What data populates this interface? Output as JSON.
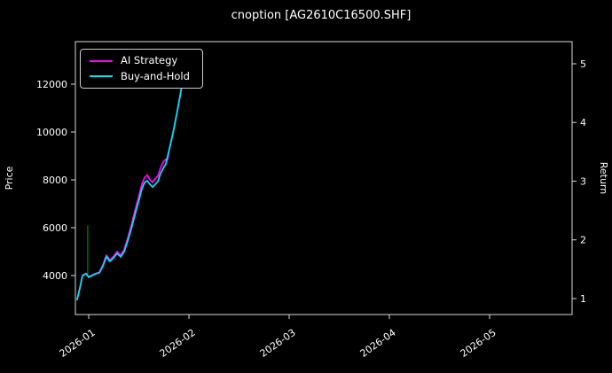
{
  "window": {
    "title": "cnoption [AG2610C16500.SHF]"
  },
  "chart_data": {
    "type": "line",
    "title": "cnoption [AG2610C16500.SHF]",
    "xlabel": "",
    "ylabel_left": "Price",
    "ylabel_right": "Return",
    "grid": false,
    "legend_position": "upper-left",
    "x_tick_labels": [
      "2026-01",
      "2026-02",
      "2026-03",
      "2026-04",
      "2026-05"
    ],
    "x_tick_months": [
      0,
      1,
      2,
      3,
      4
    ],
    "x_range_months": [
      -0.133,
      4.823
    ],
    "y_left_range": [
      2370,
      13778
    ],
    "y_left_ticks": [
      4000,
      6000,
      8000,
      10000,
      12000
    ],
    "y_right_ticks": [
      1,
      2,
      3,
      4,
      5
    ],
    "right_axis": {
      "base_price": 3037,
      "price_per_unit": 2454
    },
    "series": [
      {
        "name": "AI Strategy",
        "color": "#ff00ff",
        "x": [
          -0.115,
          -0.088,
          -0.062,
          -0.027,
          0,
          0.035,
          0.071,
          0.106,
          0.142,
          0.177,
          0.212,
          0.248,
          0.283,
          0.319,
          0.354,
          0.389,
          0.425,
          0.46,
          0.496,
          0.531,
          0.558,
          0.584,
          0.611,
          0.637,
          0.664,
          0.69,
          0.717,
          0.743,
          0.77,
          0.788,
          0.805,
          0.841,
          0.876,
          0.912,
          0.947,
          0.982
        ],
        "y": [
          3000,
          3480,
          4010,
          4090,
          3950,
          4020,
          4090,
          4130,
          4450,
          4850,
          4650,
          4800,
          5000,
          4850,
          5080,
          5560,
          6100,
          6680,
          7250,
          7820,
          8100,
          8200,
          8000,
          7900,
          8050,
          8150,
          8500,
          8750,
          8860,
          8860,
          9295,
          9960,
          10700,
          11515,
          12370,
          13110
        ]
      },
      {
        "name": "Buy-and-Hold",
        "color": "#00e0ee",
        "x": [
          -0.115,
          -0.088,
          -0.062,
          -0.027,
          0,
          0.035,
          0.071,
          0.106,
          0.142,
          0.177,
          0.212,
          0.248,
          0.283,
          0.319,
          0.354,
          0.389,
          0.425,
          0.46,
          0.496,
          0.531,
          0.558,
          0.584,
          0.611,
          0.637,
          0.664,
          0.69,
          0.717,
          0.743,
          0.77,
          0.805,
          0.841,
          0.876,
          0.912,
          0.947,
          0.982
        ],
        "y": [
          3000,
          3480,
          4000,
          4075,
          3930,
          4000,
          4075,
          4110,
          4400,
          4780,
          4590,
          4740,
          4925,
          4780,
          5000,
          5445,
          5960,
          6520,
          7075,
          7630,
          7890,
          7965,
          7815,
          7700,
          7815,
          7930,
          8260,
          8480,
          8665,
          9295,
          9960,
          10700,
          11515,
          12370,
          13110
        ]
      }
    ],
    "aux_lines": [
      {
        "x": -0.01,
        "y0": 3950,
        "y1": 6100,
        "color": "#007a00"
      },
      {
        "x": 0.995,
        "y0": 11900,
        "y1": 13460,
        "color": "#00595f"
      }
    ]
  }
}
